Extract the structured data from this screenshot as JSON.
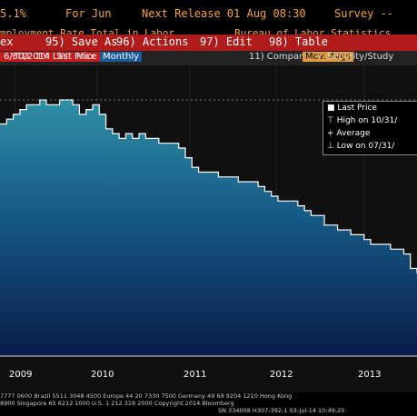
{
  "header": {
    "value": "5.1%",
    "period": "For Jun",
    "release": "Next Release 01 Aug 08:30",
    "survey": "Survey --"
  },
  "subheader": {
    "title": "mployment Rate Total in Labor...",
    "source": "Bureau of Labor Statistics"
  },
  "toolbar": {
    "ex": "ex",
    "save_as": "95) Save As",
    "actions": "96) Actions",
    "edit": "97) Edit",
    "table": "98) Table"
  },
  "range_bar": {
    "date_range": "6/30/2014",
    "last_price": "Last Price",
    "periods": [
      "YTD",
      "1Y",
      "5Y",
      "Max"
    ],
    "frequency": "Monthly",
    "compare": "11) Compare",
    "mov_avgs": "Mov. Avgs",
    "nav_left": "«",
    "security_study": "Security/Study"
  },
  "legend": {
    "last_price": "Last Price",
    "high": "High on 10/31/",
    "average": "Average",
    "low": "Low on 07/31/"
  },
  "x_labels": [
    "2009",
    "2010",
    "2011",
    "2012",
    "2013"
  ],
  "footer": {
    "line1": "7777 0600 Brazil 5511 3048 4500 Europe 44 20 7330 7500 Germany 49 69 9204 1210 Hong Kong",
    "line2": "8900        Singapore 65 6212 1000        U.S. 1 212 318 2000        Copyright 2014 Bloomberg",
    "line3": "SN 334008 H307-392-1 03-Jul-14 10:49:20"
  },
  "colors": {
    "amber": "#f7a23b",
    "red_bar": "#b01b1b",
    "monthly": "#1b5b9c",
    "area_top": "#2f8fa6",
    "area_bottom": "#0a1d4a"
  },
  "chart_data": {
    "type": "area",
    "x": [
      "2008-11",
      "2008-12",
      "2009-01",
      "2009-02",
      "2009-03",
      "2009-04",
      "2009-05",
      "2009-06",
      "2009-07",
      "2009-08",
      "2009-09",
      "2009-10",
      "2009-11",
      "2009-12",
      "2010-01",
      "2010-02",
      "2010-03",
      "2010-04",
      "2010-05",
      "2010-06",
      "2010-07",
      "2010-08",
      "2010-09",
      "2010-10",
      "2010-11",
      "2010-12",
      "2011-01",
      "2011-02",
      "2011-03",
      "2011-04",
      "2011-05",
      "2011-06",
      "2011-07",
      "2011-08",
      "2011-09",
      "2011-10",
      "2011-11",
      "2011-12",
      "2012-01",
      "2012-02",
      "2012-03",
      "2012-04",
      "2012-05",
      "2012-06",
      "2012-07",
      "2012-08",
      "2012-09",
      "2012-10",
      "2012-11",
      "2012-12",
      "2013-01",
      "2013-02",
      "2013-03",
      "2013-04",
      "2013-05",
      "2013-06",
      "2013-07",
      "2013-08",
      "2013-09",
      "2013-10",
      "2013-11",
      "2013-12",
      "2014-01",
      "2014-02"
    ],
    "values": [
      9.5,
      9.6,
      9.7,
      9.8,
      9.9,
      9.9,
      10.0,
      9.9,
      9.9,
      10.0,
      10.0,
      9.9,
      9.7,
      9.8,
      9.9,
      9.7,
      9.4,
      9.3,
      9.2,
      9.3,
      9.2,
      9.3,
      9.2,
      9.2,
      9.1,
      9.1,
      9.1,
      9.0,
      8.8,
      8.6,
      8.5,
      8.5,
      8.5,
      8.4,
      8.4,
      8.4,
      8.3,
      8.3,
      8.3,
      8.2,
      8.1,
      8.0,
      7.9,
      7.9,
      7.9,
      7.8,
      7.7,
      7.6,
      7.6,
      7.4,
      7.4,
      7.3,
      7.3,
      7.2,
      7.2,
      7.1,
      7.0,
      7.0,
      7.0,
      6.9,
      6.9,
      6.8,
      6.5,
      6.4
    ],
    "dashed_max_line": "horizontal dashed line at period high"
  }
}
